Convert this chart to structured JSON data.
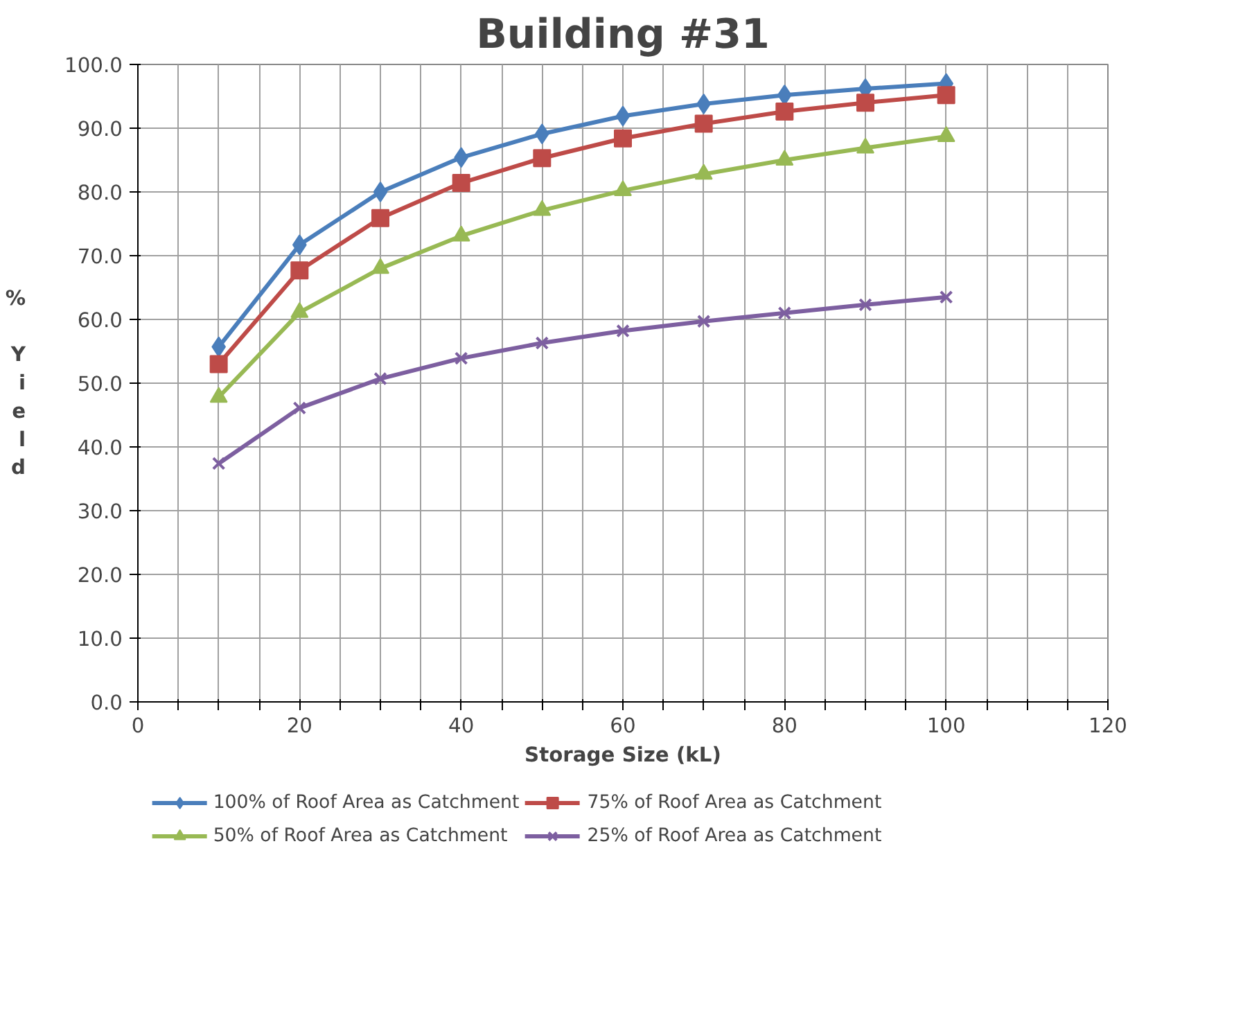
{
  "chart_data": {
    "type": "line",
    "title": "Building #31",
    "xlabel": "Storage Size (kL)",
    "ylabel": "% Yield",
    "x": [
      10,
      20,
      30,
      40,
      50,
      60,
      70,
      80,
      90,
      100
    ],
    "series": [
      {
        "name": "100% of Roof Area as Catchment",
        "color": "#4a7ebb",
        "marker": "diamond",
        "values": [
          55.7,
          71.7,
          80.0,
          85.4,
          89.1,
          91.9,
          93.8,
          95.2,
          96.2,
          97.0
        ]
      },
      {
        "name": "75% of Roof Area as Catchment",
        "color": "#be4b48",
        "marker": "square",
        "values": [
          53.0,
          67.7,
          75.9,
          81.4,
          85.3,
          88.4,
          90.7,
          92.6,
          94.0,
          95.2
        ]
      },
      {
        "name": "50% of Roof Area as Catchment",
        "color": "#98b954",
        "marker": "triangle",
        "values": [
          47.8,
          61.1,
          68.0,
          73.1,
          77.1,
          80.2,
          82.8,
          85.0,
          86.9,
          88.7
        ]
      },
      {
        "name": "25% of Roof Area as Catchment",
        "color": "#7d5fa0",
        "marker": "cross",
        "values": [
          37.4,
          46.1,
          50.7,
          53.9,
          56.3,
          58.2,
          59.7,
          61.0,
          62.3,
          63.5
        ]
      }
    ],
    "xlim": [
      0,
      120
    ],
    "xticks": [
      0,
      {
        "value": 5,
        "label": null
      },
      {
        "value": 10,
        "label": null
      },
      {
        "value": 15,
        "label": null
      },
      20,
      {
        "value": 25,
        "label": null
      },
      {
        "value": 30,
        "label": null
      },
      {
        "value": 35,
        "label": null
      },
      40,
      {
        "value": 45,
        "label": null
      },
      {
        "value": 50,
        "label": null
      },
      {
        "value": 55,
        "label": null
      },
      60,
      {
        "value": 65,
        "label": null
      },
      {
        "value": 70,
        "label": null
      },
      {
        "value": 75,
        "label": null
      },
      80,
      {
        "value": 85,
        "label": null
      },
      {
        "value": 90,
        "label": null
      },
      {
        "value": 95,
        "label": null
      },
      100,
      {
        "value": 105,
        "label": null
      },
      {
        "value": 110,
        "label": null
      },
      {
        "value": 115,
        "label": null
      },
      120
    ],
    "ylim": [
      0,
      100
    ],
    "yticks": [
      {
        "value": 0,
        "label": "0.0"
      },
      {
        "value": 10,
        "label": "10.0"
      },
      {
        "value": 20,
        "label": "20.0"
      },
      {
        "value": 30,
        "label": "30.0"
      },
      {
        "value": 40,
        "label": "40.0"
      },
      {
        "value": 50,
        "label": "50.0"
      },
      {
        "value": 60,
        "label": "60.0"
      },
      {
        "value": 70,
        "label": "70.0"
      },
      {
        "value": 80,
        "label": "80.0"
      },
      {
        "value": 90,
        "label": "90.0"
      },
      {
        "value": 100,
        "label": "100.0"
      }
    ],
    "grid": true,
    "legend": "bottom",
    "line_style": "solid"
  }
}
